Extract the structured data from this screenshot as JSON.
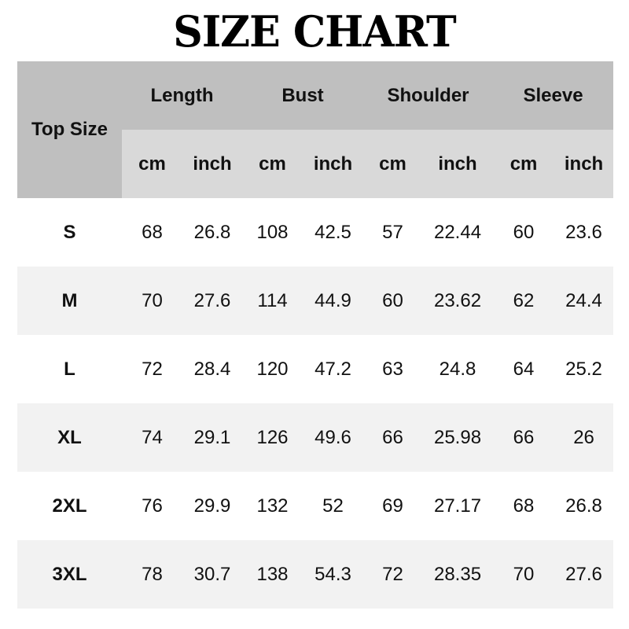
{
  "title": "SIZE CHART",
  "header": {
    "size_label": "Top Size",
    "groups": [
      "Length",
      "Bust",
      "Shoulder",
      "Sleeve"
    ],
    "units": [
      "cm",
      "inch",
      "cm",
      "inch",
      "cm",
      "inch",
      "cm",
      "inch"
    ]
  },
  "colors": {
    "header_dark": "#bfbfbf",
    "header_light": "#d9d9d9",
    "row_alt": "#f2f2f2"
  },
  "rows": [
    {
      "size": "S",
      "values": [
        "68",
        "26.8",
        "108",
        "42.5",
        "57",
        "22.44",
        "60",
        "23.6"
      ]
    },
    {
      "size": "M",
      "values": [
        "70",
        "27.6",
        "114",
        "44.9",
        "60",
        "23.62",
        "62",
        "24.4"
      ]
    },
    {
      "size": "L",
      "values": [
        "72",
        "28.4",
        "120",
        "47.2",
        "63",
        "24.8",
        "64",
        "25.2"
      ]
    },
    {
      "size": "XL",
      "values": [
        "74",
        "29.1",
        "126",
        "49.6",
        "66",
        "25.98",
        "66",
        "26"
      ]
    },
    {
      "size": "2XL",
      "values": [
        "76",
        "29.9",
        "132",
        "52",
        "69",
        "27.17",
        "68",
        "26.8"
      ]
    },
    {
      "size": "3XL",
      "values": [
        "78",
        "30.7",
        "138",
        "54.3",
        "72",
        "28.35",
        "70",
        "27.6"
      ]
    }
  ]
}
